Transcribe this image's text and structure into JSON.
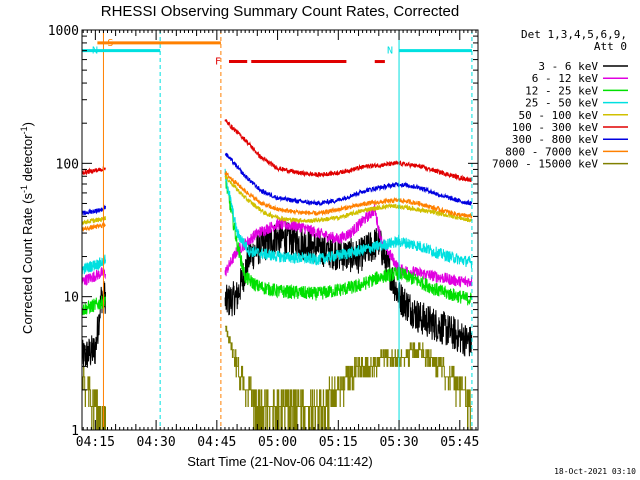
{
  "chart_data": {
    "type": "line",
    "title": "RHESSI Observing Summary Count Rates, Corrected",
    "xlabel": "Start Time (21-Nov-06 04:11:42)",
    "ylabel_parts": [
      "Corrected Count Rate (s",
      "-1",
      " detector",
      "-1",
      ")"
    ],
    "y_scale": "log",
    "ylim": [
      1,
      1000
    ],
    "y_ticks": [
      {
        "v": 1,
        "label": "1"
      },
      {
        "v": 10,
        "label": "10"
      },
      {
        "v": 100,
        "label": "100"
      },
      {
        "v": 1000,
        "label": "1000"
      }
    ],
    "xlim": [
      "04:11:42",
      "05:49:30"
    ],
    "x_ticks": [
      {
        "t": "04:15",
        "label": "04:15"
      },
      {
        "t": "04:30",
        "label": "04:30"
      },
      {
        "t": "04:45",
        "label": "04:45"
      },
      {
        "t": "05:00",
        "label": "05:00"
      },
      {
        "t": "05:15",
        "label": "05:15"
      },
      {
        "t": "05:30",
        "label": "05:30"
      },
      {
        "t": "05:45",
        "label": "05:45"
      }
    ],
    "detectors": [
      "Det 1,3,4,5,6,9,",
      "Att 0"
    ],
    "legend_placement": "right",
    "attenuator_state": "0",
    "series": [
      {
        "name": "3 - 6 keV",
        "color": "#000000",
        "noise": 0.3,
        "points": [
          [
            "04:11:42",
            3.5
          ],
          [
            "04:15:00",
            4
          ],
          [
            "04:16:30",
            10
          ],
          [
            "04:47:00",
            9
          ],
          [
            "04:50:00",
            10
          ],
          [
            "04:53:00",
            20
          ],
          [
            "04:56:00",
            24
          ],
          [
            "05:00:00",
            28
          ],
          [
            "05:05:00",
            26
          ],
          [
            "05:10:00",
            23
          ],
          [
            "05:15:00",
            21
          ],
          [
            "05:20:00",
            20
          ],
          [
            "05:25:00",
            26
          ],
          [
            "05:30:00",
            10
          ],
          [
            "05:35:00",
            7
          ],
          [
            "05:40:00",
            6
          ],
          [
            "05:45:00",
            5
          ],
          [
            "05:48:00",
            4.5
          ]
        ]
      },
      {
        "name": "6 - 12 keV",
        "color": "#e000e0",
        "noise": 0.1,
        "points": [
          [
            "04:11:42",
            13
          ],
          [
            "04:16:30",
            15
          ],
          [
            "04:47:00",
            15
          ],
          [
            "04:50:00",
            22
          ],
          [
            "04:55:00",
            30
          ],
          [
            "05:00:00",
            35
          ],
          [
            "05:05:00",
            34
          ],
          [
            "05:10:00",
            30
          ],
          [
            "05:15:00",
            27
          ],
          [
            "05:18:00",
            30
          ],
          [
            "05:24:00",
            45
          ],
          [
            "05:25:30",
            27
          ],
          [
            "05:30:00",
            16
          ],
          [
            "05:35:00",
            15
          ],
          [
            "05:40:00",
            14
          ],
          [
            "05:45:00",
            13
          ],
          [
            "05:48:00",
            13
          ]
        ]
      },
      {
        "name": "12 - 25 keV",
        "color": "#00e000",
        "noise": 0.12,
        "points": [
          [
            "04:11:42",
            8
          ],
          [
            "04:16:30",
            9
          ],
          [
            "04:47:00",
            80
          ],
          [
            "04:50:00",
            25
          ],
          [
            "04:52:00",
            14
          ],
          [
            "04:55:00",
            12
          ],
          [
            "05:00:00",
            11
          ],
          [
            "05:10:00",
            10.5
          ],
          [
            "05:20:00",
            12
          ],
          [
            "05:25:00",
            14
          ],
          [
            "05:30:00",
            15
          ],
          [
            "05:35:00",
            13
          ],
          [
            "05:40:00",
            11
          ],
          [
            "05:45:00",
            10
          ],
          [
            "05:48:00",
            9.5
          ]
        ]
      },
      {
        "name": "25 - 50 keV",
        "color": "#00e0e0",
        "noise": 0.1,
        "points": [
          [
            "04:11:42",
            16
          ],
          [
            "04:16:30",
            18
          ],
          [
            "04:47:00",
            85
          ],
          [
            "04:50:00",
            30
          ],
          [
            "04:53:00",
            22
          ],
          [
            "05:00:00",
            20
          ],
          [
            "05:10:00",
            19
          ],
          [
            "05:20:00",
            22
          ],
          [
            "05:25:00",
            24
          ],
          [
            "05:30:00",
            26
          ],
          [
            "05:35:00",
            24
          ],
          [
            "05:40:00",
            21
          ],
          [
            "05:45:00",
            19
          ],
          [
            "05:48:00",
            18
          ]
        ]
      },
      {
        "name": "50 - 100 keV",
        "color": "#d0c000",
        "noise": 0.04,
        "points": [
          [
            "04:11:42",
            36
          ],
          [
            "04:16:30",
            38
          ],
          [
            "04:47:00",
            80
          ],
          [
            "04:52:00",
            55
          ],
          [
            "04:57:00",
            42
          ],
          [
            "05:02:00",
            38
          ],
          [
            "05:08:00",
            37
          ],
          [
            "05:15:00",
            39
          ],
          [
            "05:22:00",
            45
          ],
          [
            "05:28:00",
            48
          ],
          [
            "05:33:00",
            46
          ],
          [
            "05:40:00",
            42
          ],
          [
            "05:45:00",
            39
          ],
          [
            "05:48:00",
            37
          ]
        ]
      },
      {
        "name": "100 - 300 keV",
        "color": "#e00000",
        "noise": 0.04,
        "points": [
          [
            "04:11:42",
            85
          ],
          [
            "04:16:30",
            90
          ],
          [
            "04:47:00",
            210
          ],
          [
            "04:52:00",
            150
          ],
          [
            "04:56:00",
            110
          ],
          [
            "05:00:00",
            92
          ],
          [
            "05:05:00",
            85
          ],
          [
            "05:10:00",
            82
          ],
          [
            "05:15:00",
            85
          ],
          [
            "05:22:00",
            95
          ],
          [
            "05:30:00",
            100
          ],
          [
            "05:35:00",
            95
          ],
          [
            "05:40:00",
            86
          ],
          [
            "05:45:00",
            78
          ],
          [
            "05:48:00",
            75
          ]
        ]
      },
      {
        "name": "300 - 800 keV",
        "color": "#0000e0",
        "noise": 0.04,
        "points": [
          [
            "04:11:42",
            42
          ],
          [
            "04:16:30",
            45
          ],
          [
            "04:47:00",
            120
          ],
          [
            "04:52:00",
            80
          ],
          [
            "04:56:00",
            62
          ],
          [
            "05:00:00",
            55
          ],
          [
            "05:05:00",
            52
          ],
          [
            "05:10:00",
            50
          ],
          [
            "05:15:00",
            53
          ],
          [
            "05:22:00",
            63
          ],
          [
            "05:30:00",
            70
          ],
          [
            "05:35:00",
            66
          ],
          [
            "05:40:00",
            58
          ],
          [
            "05:45:00",
            52
          ],
          [
            "05:48:00",
            50
          ]
        ]
      },
      {
        "name": "800 - 7000 keV",
        "color": "#ff8000",
        "noise": 0.04,
        "points": [
          [
            "04:11:42",
            32
          ],
          [
            "04:16:30",
            34
          ],
          [
            "04:47:00",
            85
          ],
          [
            "04:52:00",
            62
          ],
          [
            "04:56:00",
            50
          ],
          [
            "05:00:00",
            45
          ],
          [
            "05:05:00",
            43
          ],
          [
            "05:10:00",
            42
          ],
          [
            "05:15:00",
            45
          ],
          [
            "05:22:00",
            50
          ],
          [
            "05:30:00",
            53
          ],
          [
            "05:35:00",
            50
          ],
          [
            "05:40:00",
            45
          ],
          [
            "05:45:00",
            41
          ],
          [
            "05:48:00",
            40
          ]
        ]
      },
      {
        "name": "7000 - 15000 keV",
        "color": "#808000",
        "noise": 0,
        "points": [
          [
            "04:11:42",
            2.5
          ],
          [
            "04:16:30",
            1.1
          ],
          [
            "04:47:00",
            6
          ],
          [
            "04:49:00",
            4
          ],
          [
            "04:50:00",
            3
          ],
          [
            "04:52:00",
            2
          ],
          [
            "04:56:00",
            1.5
          ],
          [
            "05:00:00",
            1.6
          ],
          [
            "05:10:00",
            1.5
          ],
          [
            "05:15:00",
            2
          ],
          [
            "05:20:00",
            3
          ],
          [
            "05:30:00",
            3.5
          ],
          [
            "05:35:00",
            4
          ],
          [
            "05:40:00",
            3
          ],
          [
            "05:45:00",
            2
          ],
          [
            "05:48:00",
            1.5
          ]
        ]
      }
    ],
    "bar_annotations": [
      {
        "label": "S",
        "color": "#ff8000",
        "value": 800,
        "from": "04:15:30",
        "to": "04:46:00"
      },
      {
        "label": "N",
        "color": "#00e0e0",
        "value": 700,
        "from": "04:11:42",
        "to": "04:31:00"
      },
      {
        "label": "N",
        "color": "#00e0e0",
        "value": 700,
        "from": "05:30:00",
        "to": "05:48:00"
      },
      {
        "label": "F",
        "color": "#e00000",
        "value": 580,
        "from": "04:48:00",
        "to": "05:17:00"
      },
      {
        "label": "",
        "color": "#e00000",
        "value": 580,
        "from": "05:24:00",
        "to": "05:26:30"
      }
    ],
    "event_lines": [
      {
        "t": "04:11:42",
        "color": "#00e0e0",
        "style": "solid"
      },
      {
        "t": "04:17:00",
        "color": "#ff8000",
        "style": "solid"
      },
      {
        "t": "04:31:00",
        "color": "#00e0e0",
        "style": "dashed"
      },
      {
        "t": "04:46:00",
        "color": "#ff8000",
        "style": "dashed"
      },
      {
        "t": "05:30:00",
        "color": "#00e0e0",
        "style": "solid"
      },
      {
        "t": "05:48:00",
        "color": "#00e0e0",
        "style": "dashed"
      }
    ],
    "data_gaps": [
      [
        "04:17:30",
        "04:47:00"
      ]
    ],
    "timestamp": "18-Oct-2021 03:10"
  }
}
